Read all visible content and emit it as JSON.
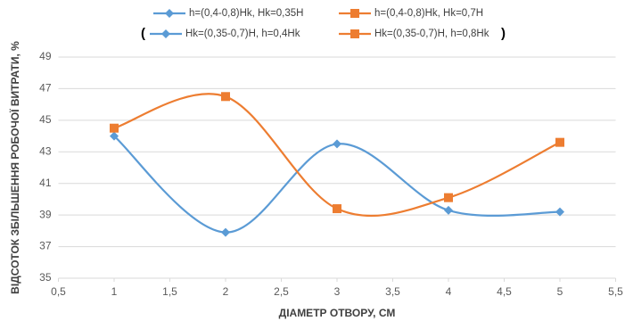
{
  "chart_data": {
    "type": "scatter_smooth",
    "x_label": "ДІАМЕТР ОТВОРУ, СМ",
    "y_label": "ВІДСОТОК ЗБІЛЬШЕННЯ РОБОЧОЇ ВИТРАТИ, %",
    "x": [
      1,
      2,
      3,
      4,
      5
    ],
    "series": [
      {
        "name": "h=(0,4-0,8)Hk, Hk=0,35H",
        "color": "#5b9bd5",
        "marker": "diamond",
        "values": [
          44.0,
          37.9,
          43.5,
          39.3,
          39.2
        ]
      },
      {
        "name": "h=(0,4-0,8)Hk, Hk=0,7H",
        "color": "#ed7d31",
        "marker": "square",
        "values": [
          44.5,
          46.5,
          39.4,
          40.1,
          43.6
        ]
      }
    ],
    "legend_second_row": {
      "open": "(",
      "labels": [
        "Hk=(0,35-0,7)H, h=0,4Hk",
        "Hk=(0,35-0,7)H, h=0,8Hk"
      ],
      "close": ")"
    },
    "xlim": [
      0.5,
      5.5
    ],
    "xticks": [
      {
        "value": 0.5,
        "label": "0,5"
      },
      1,
      {
        "value": 1.5,
        "label": "1,5"
      },
      2,
      {
        "value": 2.5,
        "label": "2,5"
      },
      3,
      {
        "value": 3.5,
        "label": "3,5"
      },
      4,
      {
        "value": 4.5,
        "label": "4,5"
      },
      5,
      {
        "value": 5.5,
        "label": "5,5"
      }
    ],
    "ylim": [
      35,
      49
    ],
    "yticks": [
      35,
      37,
      39,
      41,
      43,
      45,
      47,
      49
    ],
    "grid": true
  }
}
